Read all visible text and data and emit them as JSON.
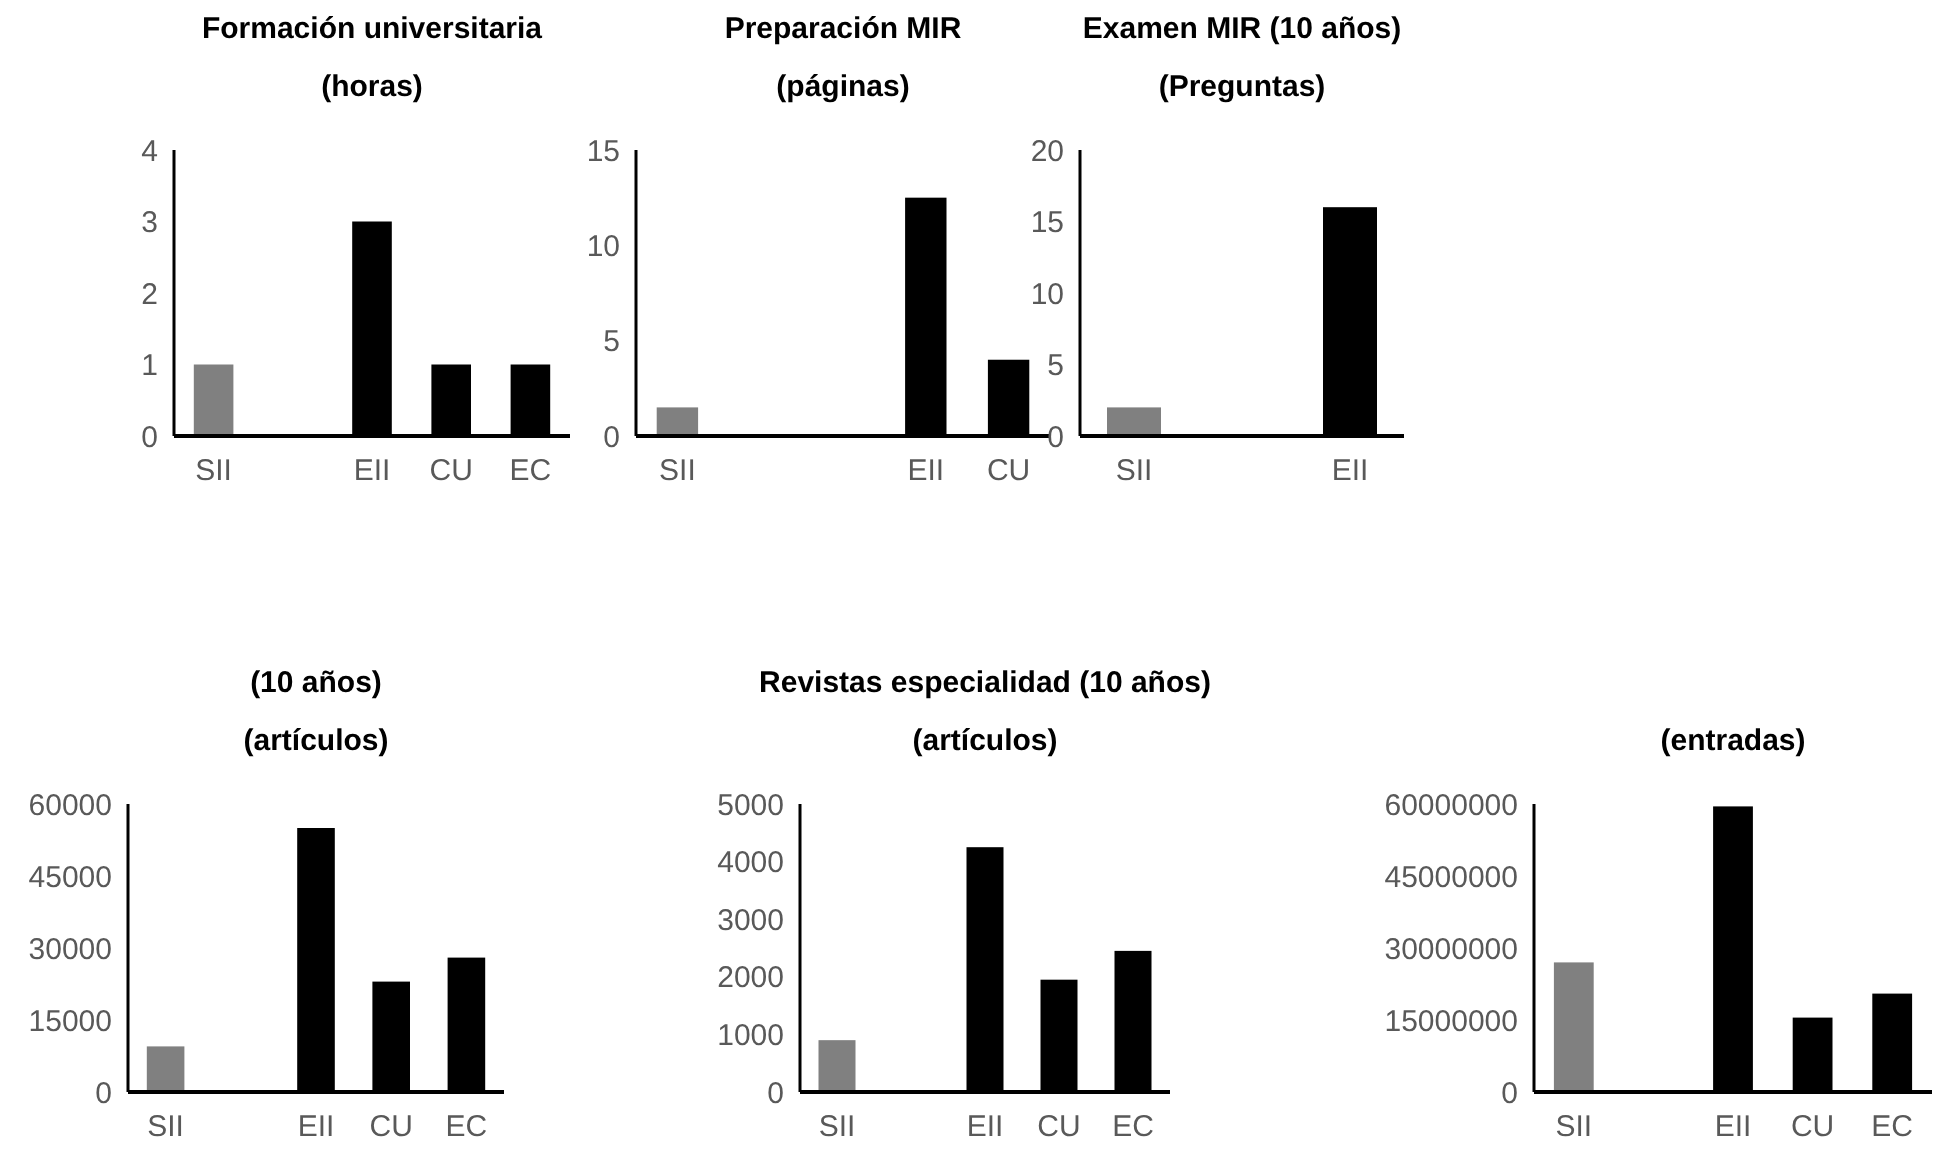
{
  "chart_data": [
    {
      "type": "bar",
      "title": "Formación universitaria",
      "subtitle": "(horas)",
      "categories": [
        "SII",
        null,
        "EII",
        "CU",
        "EC"
      ],
      "values": [
        1,
        null,
        3,
        1,
        1
      ],
      "colors": [
        "#808080",
        null,
        "#000000",
        "#000000",
        "#000000"
      ],
      "ylim": [
        0,
        4
      ],
      "yticks": [
        0,
        1,
        2,
        3,
        4
      ]
    },
    {
      "type": "bar",
      "title": "Preparación MIR",
      "subtitle": "(páginas)",
      "categories": [
        "SII",
        null,
        null,
        "EII",
        "CU"
      ],
      "values": [
        1.5,
        null,
        null,
        12.5,
        4
      ],
      "colors": [
        "#808080",
        null,
        null,
        "#000000",
        "#000000"
      ],
      "ylim": [
        0,
        15
      ],
      "yticks": [
        0,
        5,
        10,
        15
      ]
    },
    {
      "type": "bar",
      "title": "Examen MIR (10 años)",
      "subtitle": "(Preguntas)",
      "categories": [
        "SII",
        null,
        "EII"
      ],
      "values": [
        2,
        null,
        16
      ],
      "colors": [
        "#808080",
        null,
        "#000000"
      ],
      "ylim": [
        0,
        20
      ],
      "yticks": [
        0,
        5,
        10,
        15,
        20
      ]
    },
    {
      "type": "bar",
      "title": "(10 años)",
      "subtitle": "(artículos)",
      "categories": [
        "SII",
        null,
        "EII",
        "CU",
        "EC"
      ],
      "values": [
        9500,
        null,
        55000,
        23000,
        28000
      ],
      "colors": [
        "#808080",
        null,
        "#000000",
        "#000000",
        "#000000"
      ],
      "ylim": [
        0,
        60000
      ],
      "yticks": [
        0,
        15000,
        30000,
        45000,
        60000
      ]
    },
    {
      "type": "bar",
      "title": "Revistas especialidad (10 años)",
      "subtitle": "(artículos)",
      "categories": [
        "SII",
        null,
        "EII",
        "CU",
        "EC"
      ],
      "values": [
        900,
        null,
        4250,
        1950,
        2450
      ],
      "colors": [
        "#808080",
        null,
        "#000000",
        "#000000",
        "#000000"
      ],
      "ylim": [
        0,
        5000
      ],
      "yticks": [
        0,
        1000,
        2000,
        3000,
        4000,
        5000
      ]
    },
    {
      "type": "bar",
      "subtitle": "(entradas)",
      "categories": [
        "SII",
        null,
        "EII",
        "CU",
        "EC"
      ],
      "values": [
        27000000,
        null,
        59500000,
        15500000,
        20500000
      ],
      "colors": [
        "#808080",
        null,
        "#000000",
        "#000000",
        "#000000"
      ],
      "ylim": [
        0,
        60000000
      ],
      "yticks": [
        0,
        15000000,
        30000000,
        45000000,
        60000000
      ]
    }
  ]
}
